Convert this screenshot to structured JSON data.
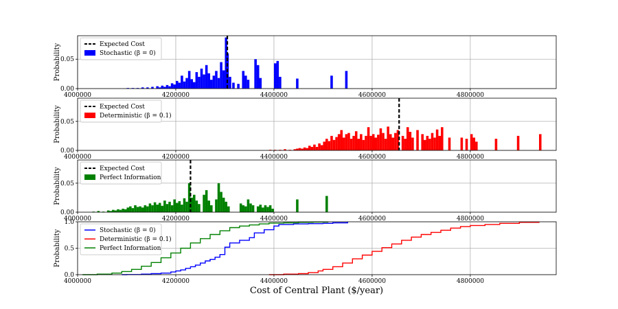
{
  "figure": {
    "xlabel": "Cost of Central Plant ($/year)"
  },
  "chart_data": [
    {
      "type": "bar",
      "panel": "stochastic",
      "ylabel": "Probability",
      "xlim": [
        4000000,
        4975000
      ],
      "ylim": [
        0,
        0.09
      ],
      "yticks": [
        0.0,
        0.05
      ],
      "ytick_labels": [
        "0.00",
        "0.05"
      ],
      "xticks": [
        4000000,
        4200000,
        4400000,
        4600000,
        4800000
      ],
      "xtick_labels": [
        "4000000",
        "4200000",
        "4400000",
        "4600000",
        "4800000"
      ],
      "grid": true,
      "legend_position": "upper-left",
      "color": "#0000ff",
      "series_name": "Stochastic (β = 0)",
      "expected_cost": 4305000,
      "expected_label": "Expected Cost",
      "bin_width": 5000,
      "bins": [
        [
          4100000,
          0.001
        ],
        [
          4110000,
          0.001
        ],
        [
          4120000,
          0.001
        ],
        [
          4130000,
          0.002
        ],
        [
          4140000,
          0.002
        ],
        [
          4150000,
          0.003
        ],
        [
          4160000,
          0.004
        ],
        [
          4165000,
          0.002
        ],
        [
          4170000,
          0.005
        ],
        [
          4175000,
          0.003
        ],
        [
          4180000,
          0.006
        ],
        [
          4185000,
          0.004
        ],
        [
          4190000,
          0.009
        ],
        [
          4195000,
          0.007
        ],
        [
          4200000,
          0.013
        ],
        [
          4205000,
          0.01
        ],
        [
          4210000,
          0.022
        ],
        [
          4215000,
          0.012
        ],
        [
          4220000,
          0.018
        ],
        [
          4225000,
          0.03
        ],
        [
          4230000,
          0.016
        ],
        [
          4235000,
          0.011
        ],
        [
          4240000,
          0.028
        ],
        [
          4245000,
          0.02
        ],
        [
          4250000,
          0.034
        ],
        [
          4255000,
          0.024
        ],
        [
          4260000,
          0.04
        ],
        [
          4265000,
          0.026
        ],
        [
          4270000,
          0.015
        ],
        [
          4275000,
          0.022
        ],
        [
          4280000,
          0.03
        ],
        [
          4285000,
          0.018
        ],
        [
          4290000,
          0.045
        ],
        [
          4295000,
          0.031
        ],
        [
          4300000,
          0.087
        ],
        [
          4303000,
          0.06
        ],
        [
          4308000,
          0.02
        ],
        [
          4315000,
          0.01
        ],
        [
          4325000,
          0.008
        ],
        [
          4335000,
          0.03
        ],
        [
          4340000,
          0.022
        ],
        [
          4345000,
          0.015
        ],
        [
          4360000,
          0.05
        ],
        [
          4365000,
          0.04
        ],
        [
          4370000,
          0.018
        ],
        [
          4400000,
          0.043
        ],
        [
          4405000,
          0.047
        ],
        [
          4410000,
          0.02
        ],
        [
          4445000,
          0.017
        ],
        [
          4515000,
          0.022
        ],
        [
          4545000,
          0.03
        ]
      ]
    },
    {
      "type": "bar",
      "panel": "deterministic",
      "ylabel": "Probability",
      "xlim": [
        4000000,
        4975000
      ],
      "ylim": [
        0,
        0.09
      ],
      "yticks": [
        0.0,
        0.05
      ],
      "ytick_labels": [
        "0.00",
        "0.05"
      ],
      "xticks": [
        4000000,
        4200000,
        4400000,
        4600000,
        4800000
      ],
      "xtick_labels": [
        "4000000",
        "4200000",
        "4400000",
        "4600000",
        "4800000"
      ],
      "grid": true,
      "legend_position": "upper-left",
      "color": "#ff0000",
      "series_name": "Deterministic (β = 0.1)",
      "expected_cost": 4655000,
      "expected_label": "Expected Cost",
      "bin_width": 5000,
      "bins": [
        [
          4390000,
          0.001
        ],
        [
          4400000,
          0.001
        ],
        [
          4410000,
          0.001
        ],
        [
          4420000,
          0.002
        ],
        [
          4430000,
          0.001
        ],
        [
          4440000,
          0.002
        ],
        [
          4445000,
          0.003
        ],
        [
          4450000,
          0.004
        ],
        [
          4455000,
          0.003
        ],
        [
          4460000,
          0.005
        ],
        [
          4465000,
          0.004
        ],
        [
          4470000,
          0.008
        ],
        [
          4475000,
          0.006
        ],
        [
          4480000,
          0.01
        ],
        [
          4485000,
          0.006
        ],
        [
          4490000,
          0.012
        ],
        [
          4495000,
          0.009
        ],
        [
          4500000,
          0.015
        ],
        [
          4505000,
          0.02
        ],
        [
          4510000,
          0.016
        ],
        [
          4515000,
          0.025
        ],
        [
          4520000,
          0.018
        ],
        [
          4525000,
          0.023
        ],
        [
          4530000,
          0.028
        ],
        [
          4535000,
          0.035
        ],
        [
          4540000,
          0.022
        ],
        [
          4545000,
          0.028
        ],
        [
          4550000,
          0.03
        ],
        [
          4555000,
          0.02
        ],
        [
          4560000,
          0.025
        ],
        [
          4565000,
          0.033
        ],
        [
          4570000,
          0.02
        ],
        [
          4575000,
          0.028
        ],
        [
          4580000,
          0.018
        ],
        [
          4585000,
          0.025
        ],
        [
          4590000,
          0.04
        ],
        [
          4595000,
          0.025
        ],
        [
          4600000,
          0.028
        ],
        [
          4605000,
          0.022
        ],
        [
          4610000,
          0.027
        ],
        [
          4615000,
          0.038
        ],
        [
          4620000,
          0.03
        ],
        [
          4625000,
          0.02
        ],
        [
          4630000,
          0.041
        ],
        [
          4635000,
          0.028
        ],
        [
          4640000,
          0.022
        ],
        [
          4645000,
          0.03
        ],
        [
          4650000,
          0.035
        ],
        [
          4660000,
          0.025
        ],
        [
          4665000,
          0.02
        ],
        [
          4670000,
          0.04
        ],
        [
          4675000,
          0.032
        ],
        [
          4680000,
          0.022
        ],
        [
          4690000,
          0.035
        ],
        [
          4700000,
          0.028
        ],
        [
          4705000,
          0.018
        ],
        [
          4710000,
          0.025
        ],
        [
          4715000,
          0.02
        ],
        [
          4720000,
          0.03
        ],
        [
          4725000,
          0.022
        ],
        [
          4730000,
          0.036
        ],
        [
          4735000,
          0.025
        ],
        [
          4740000,
          0.04
        ],
        [
          4755000,
          0.022
        ],
        [
          4780000,
          0.022
        ],
        [
          4790000,
          0.02
        ],
        [
          4800000,
          0.028
        ],
        [
          4805000,
          0.022
        ],
        [
          4810000,
          0.015
        ],
        [
          4850000,
          0.02
        ],
        [
          4895000,
          0.025
        ],
        [
          4940000,
          0.028
        ]
      ]
    },
    {
      "type": "bar",
      "panel": "perfect",
      "ylabel": "Probability",
      "xlim": [
        4000000,
        4975000
      ],
      "ylim": [
        0,
        0.09
      ],
      "yticks": [
        0.0,
        0.05
      ],
      "ytick_labels": [
        "0.00",
        "0.05"
      ],
      "xticks": [
        4000000,
        4200000,
        4400000,
        4600000,
        4800000
      ],
      "xtick_labels": [
        "4000000",
        "4200000",
        "4400000",
        "4600000",
        "4800000"
      ],
      "grid": true,
      "legend_position": "upper-left",
      "color": "#008000",
      "series_name": "Perfect Information",
      "expected_cost": 4230000,
      "expected_label": "Expected Cost",
      "bin_width": 5000,
      "bins": [
        [
          4030000,
          0.001
        ],
        [
          4040000,
          0.002
        ],
        [
          4050000,
          0.001
        ],
        [
          4060000,
          0.003
        ],
        [
          4065000,
          0.002
        ],
        [
          4070000,
          0.004
        ],
        [
          4075000,
          0.003
        ],
        [
          4080000,
          0.005
        ],
        [
          4085000,
          0.004
        ],
        [
          4090000,
          0.006
        ],
        [
          4095000,
          0.005
        ],
        [
          4100000,
          0.008
        ],
        [
          4105000,
          0.01
        ],
        [
          4110000,
          0.007
        ],
        [
          4115000,
          0.012
        ],
        [
          4120000,
          0.009
        ],
        [
          4125000,
          0.01
        ],
        [
          4130000,
          0.008
        ],
        [
          4135000,
          0.012
        ],
        [
          4140000,
          0.01
        ],
        [
          4145000,
          0.015
        ],
        [
          4150000,
          0.012
        ],
        [
          4155000,
          0.017
        ],
        [
          4160000,
          0.013
        ],
        [
          4165000,
          0.016
        ],
        [
          4170000,
          0.011
        ],
        [
          4175000,
          0.02
        ],
        [
          4180000,
          0.014
        ],
        [
          4185000,
          0.018
        ],
        [
          4190000,
          0.012
        ],
        [
          4195000,
          0.022
        ],
        [
          4200000,
          0.016
        ],
        [
          4205000,
          0.019
        ],
        [
          4210000,
          0.013
        ],
        [
          4215000,
          0.024
        ],
        [
          4220000,
          0.018
        ],
        [
          4225000,
          0.05
        ],
        [
          4230000,
          0.025
        ],
        [
          4235000,
          0.03
        ],
        [
          4240000,
          0.02
        ],
        [
          4245000,
          0.014
        ],
        [
          4255000,
          0.03
        ],
        [
          4260000,
          0.038
        ],
        [
          4265000,
          0.02
        ],
        [
          4270000,
          0.012
        ],
        [
          4280000,
          0.022
        ],
        [
          4285000,
          0.05
        ],
        [
          4290000,
          0.035
        ],
        [
          4295000,
          0.025
        ],
        [
          4300000,
          0.018
        ],
        [
          4305000,
          0.01
        ],
        [
          4330000,
          0.015
        ],
        [
          4335000,
          0.012
        ],
        [
          4340000,
          0.01
        ],
        [
          4345000,
          0.022
        ],
        [
          4350000,
          0.015
        ],
        [
          4355000,
          0.012
        ],
        [
          4365000,
          0.01
        ],
        [
          4370000,
          0.013
        ],
        [
          4375000,
          0.008
        ],
        [
          4380000,
          0.012
        ],
        [
          4385000,
          0.009
        ],
        [
          4390000,
          0.012
        ],
        [
          4395000,
          0.006
        ],
        [
          4445000,
          0.022
        ],
        [
          4505000,
          0.028
        ]
      ]
    },
    {
      "type": "line",
      "panel": "cdf",
      "ylabel": "Probability",
      "xlim": [
        4000000,
        4975000
      ],
      "ylim": [
        0,
        1.0
      ],
      "yticks": [
        0.0,
        0.5,
        1.0
      ],
      "ytick_labels": [
        "0.0",
        "0.5",
        "1.0"
      ],
      "xticks": [
        4000000,
        4200000,
        4400000,
        4600000,
        4800000
      ],
      "xtick_labels": [
        "4000000",
        "4200000",
        "4400000",
        "4600000",
        "4800000"
      ],
      "grid": true,
      "legend_position": "upper-left",
      "series": [
        {
          "name": "Stochastic (β = 0)",
          "color": "#0000ff",
          "x": [
            4090000,
            4100000,
            4130000,
            4150000,
            4170000,
            4190000,
            4200000,
            4210000,
            4220000,
            4230000,
            4240000,
            4250000,
            4260000,
            4270000,
            4280000,
            4290000,
            4300000,
            4310000,
            4330000,
            4350000,
            4360000,
            4380000,
            4400000,
            4410000,
            4440000,
            4470000,
            4500000,
            4520000,
            4550000
          ],
          "y": [
            0.0,
            0.003,
            0.01,
            0.02,
            0.03,
            0.05,
            0.07,
            0.09,
            0.12,
            0.15,
            0.18,
            0.22,
            0.26,
            0.29,
            0.33,
            0.38,
            0.52,
            0.6,
            0.65,
            0.7,
            0.79,
            0.85,
            0.92,
            0.95,
            0.96,
            0.965,
            0.97,
            0.98,
            1.0
          ]
        },
        {
          "name": "Deterministic (β = 0.1)",
          "color": "#ff0000",
          "x": [
            4390000,
            4420000,
            4450000,
            4470000,
            4490000,
            4500000,
            4520000,
            4540000,
            4560000,
            4580000,
            4600000,
            4620000,
            4640000,
            4660000,
            4680000,
            4700000,
            4720000,
            4740000,
            4760000,
            4780000,
            4800000,
            4830000,
            4860000,
            4900000,
            4940000
          ],
          "y": [
            0.0,
            0.01,
            0.02,
            0.04,
            0.07,
            0.1,
            0.15,
            0.22,
            0.3,
            0.37,
            0.44,
            0.51,
            0.58,
            0.65,
            0.71,
            0.76,
            0.8,
            0.84,
            0.88,
            0.91,
            0.93,
            0.95,
            0.97,
            0.99,
            1.0
          ]
        },
        {
          "name": "Perfect Information",
          "color": "#008000",
          "x": [
            4010000,
            4040000,
            4070000,
            4090000,
            4110000,
            4130000,
            4150000,
            4170000,
            4190000,
            4210000,
            4230000,
            4250000,
            4270000,
            4290000,
            4310000,
            4330000,
            4350000,
            4370000,
            4390000,
            4420000,
            4450000,
            4480000,
            4510000
          ],
          "y": [
            0.0,
            0.01,
            0.03,
            0.06,
            0.1,
            0.16,
            0.23,
            0.32,
            0.41,
            0.5,
            0.6,
            0.68,
            0.76,
            0.83,
            0.89,
            0.92,
            0.94,
            0.96,
            0.975,
            0.98,
            0.99,
            0.995,
            1.0
          ]
        }
      ]
    }
  ]
}
